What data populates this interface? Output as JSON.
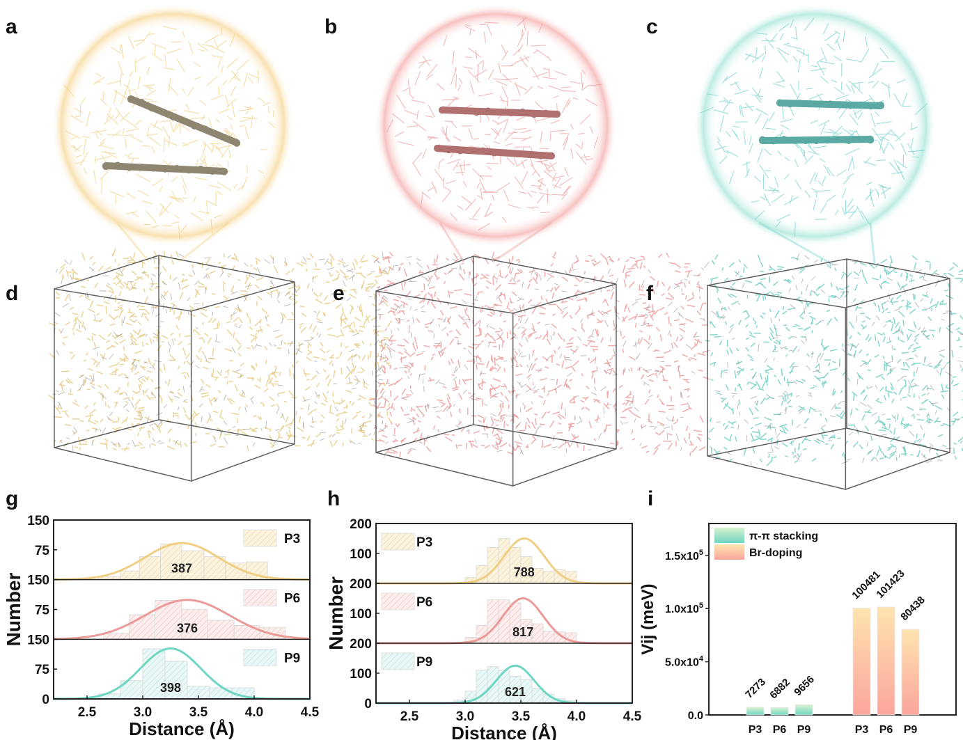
{
  "figure": {
    "panel_labels": [
      "a",
      "b",
      "c",
      "d",
      "e",
      "f",
      "g",
      "h",
      "i"
    ],
    "molecule_panels": [
      {
        "id": "a",
        "description": "zoomed pi-pi stacked dimer",
        "color": "#f2d28a"
      },
      {
        "id": "b",
        "description": "zoomed pi-pi stacked dimer",
        "color": "#f0a3a3"
      },
      {
        "id": "c",
        "description": "zoomed pi-pi stacked dimer",
        "color": "#7ed6cf"
      },
      {
        "id": "d",
        "description": "simulation box",
        "color": "#f2d28a"
      },
      {
        "id": "e",
        "description": "simulation box",
        "color": "#f0a3a3"
      },
      {
        "id": "f",
        "description": "simulation box",
        "color": "#7ed6cf"
      }
    ]
  },
  "colors": {
    "P3": "#f0cf84",
    "P6": "#ea9a98",
    "P9": "#6fd6c2",
    "axis": "#222222"
  },
  "chart_data": [
    {
      "id": "g",
      "type": "bar",
      "title": "",
      "xlabel": "Distance (Å)",
      "ylabel": "Number",
      "xlim": [
        2.2,
        4.5
      ],
      "xticks": [
        "2.5",
        "3.0",
        "3.5",
        "4.0",
        "4.5"
      ],
      "ylim": [
        0,
        150
      ],
      "yticks": [
        "0",
        "75",
        "150"
      ],
      "stacked_panels": true,
      "series": [
        {
          "name": "P3",
          "count_label": "387",
          "bin_edges": [
            2.6,
            2.8,
            2.97,
            3.16,
            3.35,
            3.55,
            3.74,
            3.93,
            4.12
          ],
          "values": [
            8,
            22,
            58,
            90,
            73,
            58,
            42,
            45
          ],
          "fit": {
            "mean": 3.35,
            "sigma": 0.33,
            "peak": 92
          }
        },
        {
          "name": "P6",
          "count_label": "376",
          "bin_edges": [
            2.65,
            2.88,
            3.11,
            3.35,
            3.58,
            3.82,
            4.05,
            4.28
          ],
          "values": [
            15,
            62,
            98,
            75,
            48,
            35,
            30
          ],
          "fit": {
            "mean": 3.4,
            "sigma": 0.38,
            "peak": 99
          }
        },
        {
          "name": "P9",
          "count_label": "398",
          "bin_edges": [
            2.6,
            2.8,
            3.0,
            3.2,
            3.4,
            3.6,
            3.8,
            4.0
          ],
          "values": [
            13,
            46,
            126,
            95,
            32,
            28,
            28
          ],
          "fit": {
            "mean": 3.25,
            "sigma": 0.27,
            "peak": 127
          }
        }
      ]
    },
    {
      "id": "h",
      "type": "bar",
      "title": "",
      "xlabel": "Distance (Å)",
      "ylabel": "Number",
      "xlim": [
        2.2,
        4.5
      ],
      "xticks": [
        "2.5",
        "3.0",
        "3.5",
        "4.0",
        "4.5"
      ],
      "ylim": [
        0,
        200
      ],
      "yticks": [
        "0",
        "100",
        "200"
      ],
      "stacked_panels": true,
      "series": [
        {
          "name": "P3",
          "count_label": "788",
          "bin_edges": [
            3.0,
            3.1,
            3.2,
            3.3,
            3.4,
            3.5,
            3.6,
            3.7,
            3.8,
            3.9,
            4.0
          ],
          "values": [
            20,
            60,
            120,
            150,
            120,
            90,
            50,
            40,
            45,
            40
          ],
          "fit": {
            "mean": 3.53,
            "sigma": 0.18,
            "peak": 150
          }
        },
        {
          "name": "P6",
          "count_label": "817",
          "bin_edges": [
            3.0,
            3.1,
            3.2,
            3.3,
            3.4,
            3.5,
            3.6,
            3.7,
            3.8,
            3.9,
            4.0
          ],
          "values": [
            20,
            60,
            145,
            145,
            135,
            80,
            65,
            40,
            38,
            35
          ],
          "fit": {
            "mean": 3.52,
            "sigma": 0.18,
            "peak": 150
          }
        },
        {
          "name": "P9",
          "count_label": "621",
          "bin_edges": [
            2.9,
            3.0,
            3.1,
            3.2,
            3.3,
            3.4,
            3.5,
            3.6,
            3.7,
            3.8,
            3.9,
            4.0
          ],
          "values": [
            10,
            40,
            110,
            122,
            110,
            90,
            78,
            50,
            30,
            15,
            8
          ],
          "fit": {
            "mean": 3.45,
            "sigma": 0.17,
            "peak": 125
          }
        }
      ]
    },
    {
      "id": "i",
      "type": "bar",
      "title": "",
      "xlabel": "",
      "ylabel": "Vij (meV)",
      "ylim": [
        0,
        180000
      ],
      "yticks": [
        "0.0",
        "5.0x10^4",
        "1.0x10^5",
        "1.5x10^5"
      ],
      "ytick_values": [
        0,
        50000,
        100000,
        150000
      ],
      "groups": [
        {
          "name": "π-π stacking",
          "categories": [
            "P3",
            "P6",
            "P9"
          ],
          "values": [
            7273,
            6882,
            9656
          ],
          "labels": [
            "7273",
            "6882",
            "9656"
          ]
        },
        {
          "name": "Br-doping",
          "categories": [
            "P3",
            "P6",
            "P9"
          ],
          "values": [
            100481,
            101423,
            80438
          ],
          "labels": [
            "100481",
            "101423",
            "80438"
          ]
        }
      ],
      "legend": [
        {
          "label": "π-π stacking",
          "gradient": [
            "#d9f2d0",
            "#6fd6c2"
          ]
        },
        {
          "label": "Br-doping",
          "gradient": [
            "#ffe4b0",
            "#fba59c"
          ]
        }
      ],
      "legend_position": "top-left"
    }
  ]
}
